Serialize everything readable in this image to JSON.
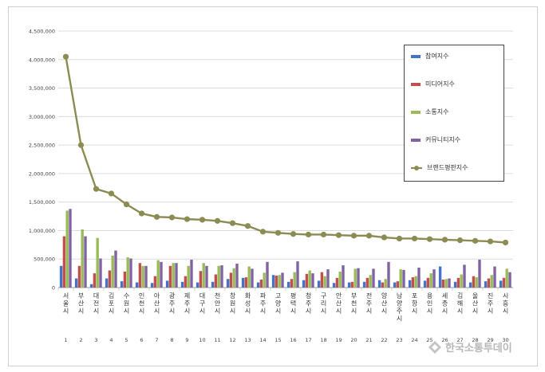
{
  "chart_data": {
    "type": "bar",
    "ylim": [
      0,
      4500000
    ],
    "yticks": [
      "0",
      "500,000",
      "1,000,000",
      "1,500,000",
      "2,000,000",
      "2,500,000",
      "3,000,000",
      "3,500,000",
      "4,000,000",
      "4,500,000"
    ],
    "grid": true,
    "legend_position": "top-right",
    "categories": [
      "서울시",
      "부산시",
      "대전시",
      "김포시",
      "수원시",
      "인천시",
      "아산시",
      "광주시",
      "제주시",
      "대구시",
      "천안시",
      "창원시",
      "화성시",
      "파주시",
      "고양시",
      "평택시",
      "청주시",
      "구리시",
      "안산시",
      "부천시",
      "전주시",
      "양산시",
      "남양주시",
      "포항시",
      "용인시",
      "세종시",
      "김해시",
      "울산시",
      "진주시",
      "시흥시"
    ],
    "ranks": [
      "1",
      "2",
      "3",
      "4",
      "5",
      "6",
      "7",
      "8",
      "9",
      "10",
      "11",
      "12",
      "13",
      "14",
      "15",
      "16",
      "17",
      "18",
      "19",
      "20",
      "21",
      "22",
      "23",
      "24",
      "25",
      "26",
      "27",
      "28",
      "29",
      "30"
    ],
    "series": [
      {
        "name": "참여지수",
        "color": "#4472c4",
        "values": [
          380000,
          160000,
          60000,
          160000,
          110000,
          90000,
          80000,
          120000,
          100000,
          90000,
          100000,
          150000,
          170000,
          90000,
          220000,
          100000,
          130000,
          120000,
          80000,
          90000,
          100000,
          130000,
          90000,
          130000,
          120000,
          370000,
          100000,
          90000,
          110000,
          120000
        ]
      },
      {
        "name": "미디어지수",
        "color": "#c0504d",
        "values": [
          900000,
          380000,
          250000,
          300000,
          280000,
          430000,
          200000,
          380000,
          200000,
          290000,
          230000,
          260000,
          180000,
          140000,
          210000,
          150000,
          240000,
          270000,
          170000,
          100000,
          170000,
          90000,
          110000,
          180000,
          170000,
          140000,
          170000,
          200000,
          160000,
          170000
        ]
      },
      {
        "name": "소통지수",
        "color": "#9bbb59",
        "values": [
          1350000,
          1020000,
          870000,
          560000,
          530000,
          380000,
          480000,
          430000,
          380000,
          430000,
          380000,
          340000,
          370000,
          260000,
          220000,
          270000,
          300000,
          200000,
          280000,
          330000,
          220000,
          150000,
          320000,
          200000,
          250000,
          150000,
          230000,
          180000,
          220000,
          330000
        ]
      },
      {
        "name": "커뮤니티지수",
        "color": "#8064a2",
        "values": [
          1380000,
          900000,
          510000,
          650000,
          510000,
          380000,
          450000,
          430000,
          490000,
          380000,
          390000,
          420000,
          330000,
          450000,
          260000,
          460000,
          250000,
          320000,
          390000,
          340000,
          330000,
          450000,
          310000,
          350000,
          320000,
          160000,
          400000,
          490000,
          370000,
          270000
        ]
      },
      {
        "name": "브랜드평판지수",
        "color": "#8b8b52",
        "values": [
          4050000,
          2500000,
          1730000,
          1650000,
          1460000,
          1300000,
          1240000,
          1230000,
          1200000,
          1190000,
          1170000,
          1130000,
          1080000,
          980000,
          960000,
          940000,
          930000,
          930000,
          920000,
          910000,
          910000,
          880000,
          860000,
          860000,
          850000,
          840000,
          830000,
          820000,
          810000,
          790000
        ]
      }
    ]
  },
  "watermark": {
    "text": "한국소통투데이"
  }
}
